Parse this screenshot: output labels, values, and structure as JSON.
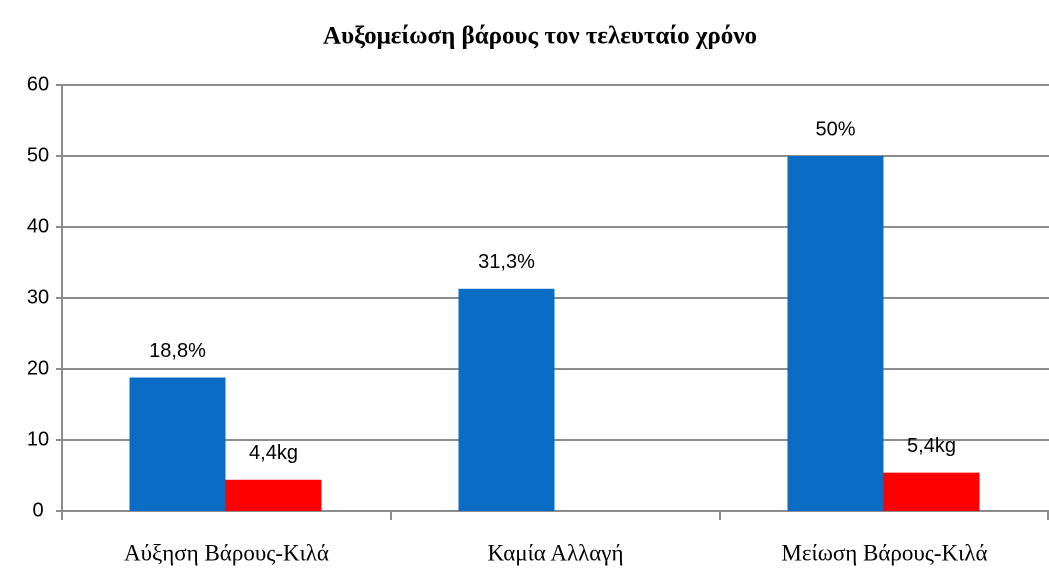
{
  "chart_data": {
    "type": "bar",
    "title": "Αυξομείωση βάρους τον τελευταίο χρόνο",
    "categories": [
      "Αύξηση Βάρους-Κιλά",
      "Καμία Αλλαγή",
      "Μείωση Βάρους-Κιλά"
    ],
    "series": [
      {
        "color": "#0a6cc4",
        "values": [
          18.8,
          31.3,
          50
        ],
        "value_labels": [
          "18,8%",
          "31,3%",
          "50%"
        ]
      },
      {
        "color": "#ff0000",
        "values": [
          4.4,
          null,
          5.4
        ],
        "value_labels": [
          "4,4kg",
          null,
          "5,4kg"
        ]
      }
    ],
    "ylim": [
      0,
      60
    ],
    "yticks": [
      0,
      10,
      20,
      30,
      40,
      50,
      60
    ],
    "grid": true
  }
}
